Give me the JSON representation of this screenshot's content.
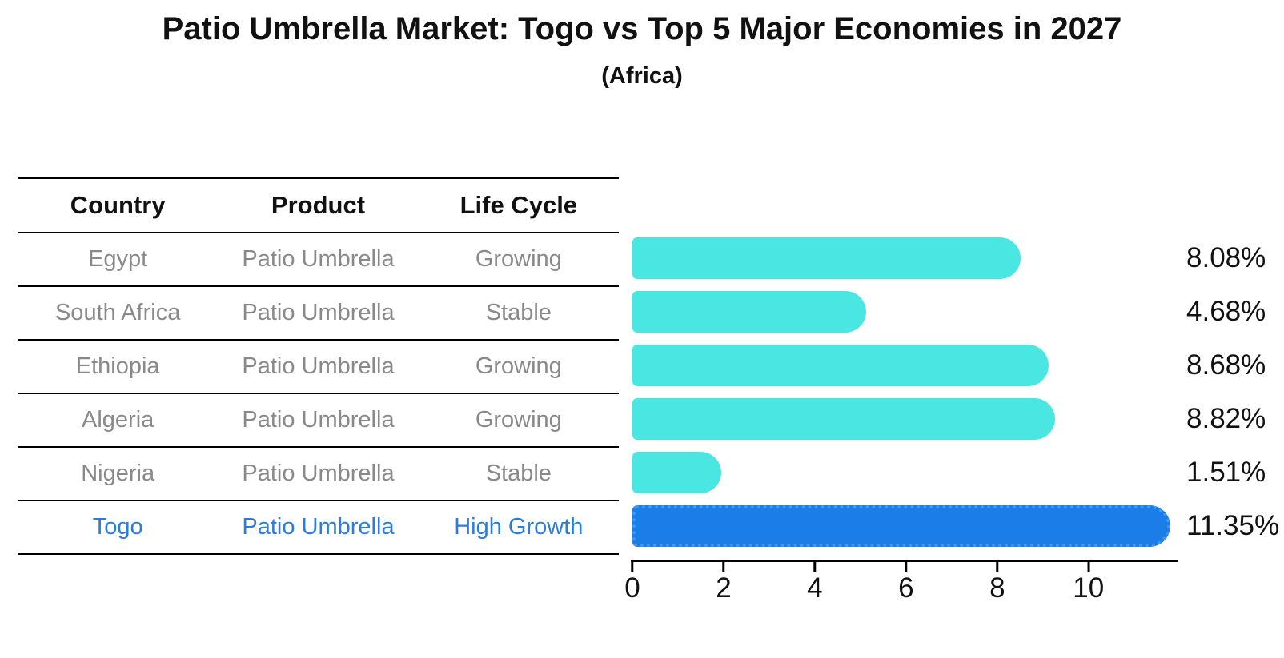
{
  "title": "Patio Umbrella Market: Togo vs Top 5 Major Economies in 2027",
  "subtitle": "(Africa)",
  "table": {
    "headers": [
      "Country",
      "Product",
      "Life Cycle"
    ],
    "rows": [
      {
        "country": "Egypt",
        "product": "Patio Umbrella",
        "life_cycle": "Growing",
        "highlight": false
      },
      {
        "country": "South Africa",
        "product": "Patio Umbrella",
        "life_cycle": "Stable",
        "highlight": false
      },
      {
        "country": "Ethiopia",
        "product": "Patio Umbrella",
        "life_cycle": "Growing",
        "highlight": false
      },
      {
        "country": "Algeria",
        "product": "Patio Umbrella",
        "life_cycle": "Growing",
        "highlight": false
      },
      {
        "country": "Nigeria",
        "product": "Patio Umbrella",
        "life_cycle": "Stable",
        "highlight": false
      },
      {
        "country": "Togo",
        "product": "Patio Umbrella",
        "life_cycle": "High Growth",
        "highlight": true
      }
    ]
  },
  "chart_data": {
    "type": "bar",
    "orientation": "horizontal",
    "title": "Patio Umbrella Market: Togo vs Top 5 Major Economies in 2027",
    "subtitle": "(Africa)",
    "categories": [
      "Egypt",
      "South Africa",
      "Ethiopia",
      "Algeria",
      "Nigeria",
      "Togo"
    ],
    "values": [
      8.08,
      4.68,
      8.68,
      8.82,
      1.51,
      11.35
    ],
    "value_labels": [
      "8.08%",
      "4.68%",
      "8.68%",
      "8.82%",
      "1.51%",
      "11.35%"
    ],
    "x_ticks": [
      0,
      2,
      4,
      6,
      8,
      10
    ],
    "x_tick_labels": [
      "0",
      "2",
      "4",
      "6",
      "8",
      "10"
    ],
    "xlim": [
      0,
      11.9
    ],
    "grid": false,
    "legend": "none",
    "highlight_index": 5,
    "bar_color": "#4AE6E1",
    "highlight_bar_color": "#1B7DE8"
  },
  "colors": {
    "bar": "#4AE6E1",
    "highlight_bar": "#1B7DE8",
    "highlight_border": "#3F97F3",
    "row_text": "#898989",
    "highlight_text": "#2B7DD9"
  }
}
